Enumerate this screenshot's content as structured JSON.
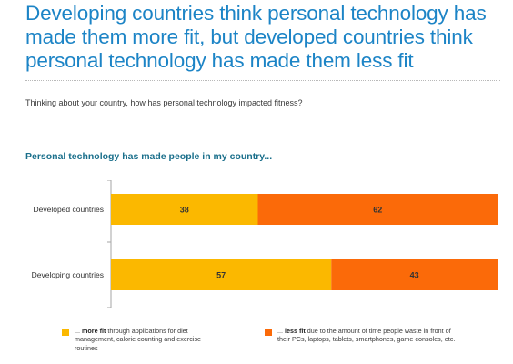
{
  "headline": "Developing countries think personal technology has made them more fit, but developed countries think personal technology has made them less fit",
  "question": "Thinking about your country, how has personal technology impacted fitness?",
  "colors": {
    "more_fit": "#fbb800",
    "less_fit": "#fb6a09",
    "title": "#1c84c6",
    "subtitle": "#1a6f8b"
  },
  "chart_data": {
    "type": "bar",
    "orientation": "horizontal",
    "stacked": true,
    "percent_stacked": true,
    "title": "Personal technology has made people in my country...",
    "categories": [
      "Developed countries",
      "Developing countries"
    ],
    "series": [
      {
        "key": "more_fit",
        "values": [
          38,
          57
        ],
        "color": "#fbb800"
      },
      {
        "key": "less_fit",
        "values": [
          62,
          43
        ],
        "color": "#fb6a09"
      }
    ],
    "xlim": [
      0,
      100
    ],
    "grid": false,
    "legend": {
      "placement": "bottom",
      "items": [
        {
          "key": "more_fit",
          "prefix": "... ",
          "bold": "more fit",
          "text": " through applications for diet management, calorie counting and exercise routines"
        },
        {
          "key": "less_fit",
          "prefix": "... ",
          "bold": "less fit",
          "text": " due to the amount of time people waste in front of their PCs, laptops, tablets, smartphones, game consoles, etc."
        }
      ]
    }
  }
}
